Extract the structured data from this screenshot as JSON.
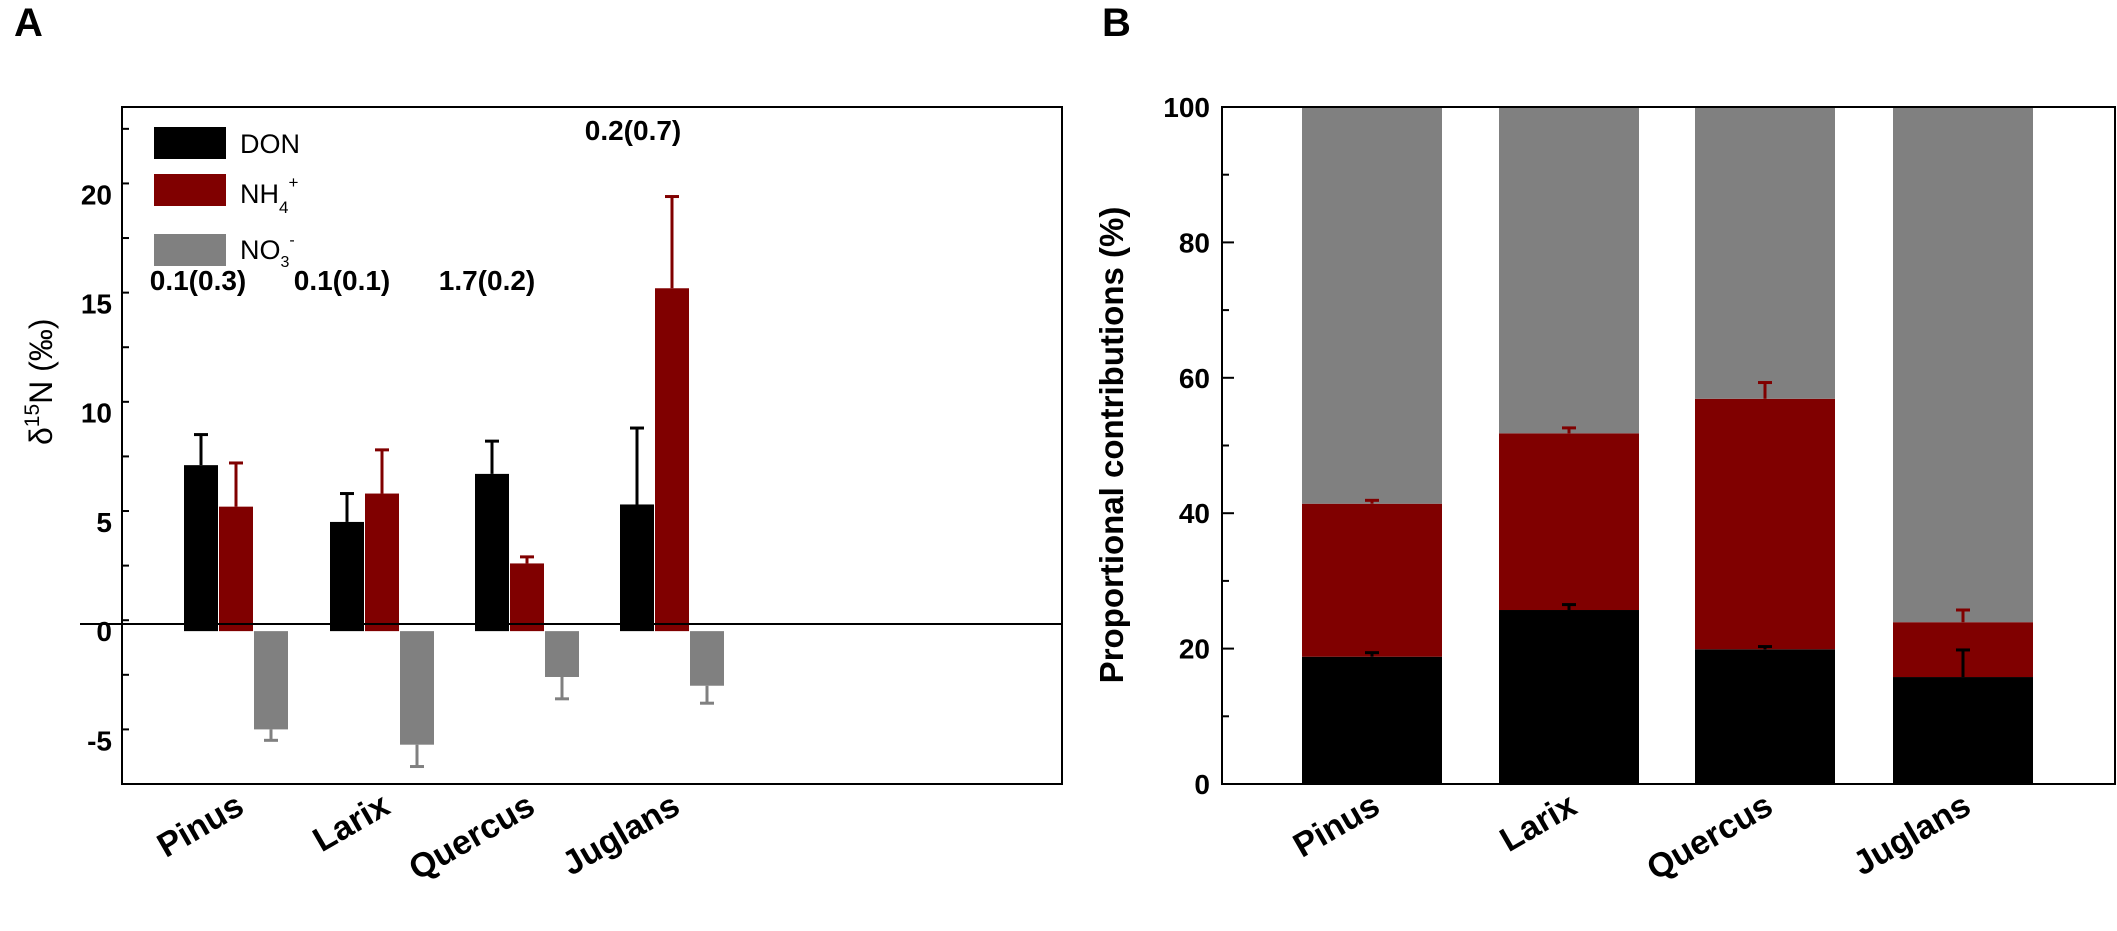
{
  "chart_data": [
    {
      "panel_label": "A",
      "type": "bar",
      "categories": [
        "Pinus",
        "Larix",
        "Quercus",
        "Juglans"
      ],
      "series": [
        {
          "name": "DON",
          "color": "#000000",
          "errcolor": "#000000",
          "values": [
            7.6,
            5.0,
            7.2,
            5.8
          ],
          "errors": [
            1.4,
            1.3,
            1.5,
            3.5
          ]
        },
        {
          "name": "NH4+",
          "color": "#800000",
          "errcolor": "#800000",
          "values": [
            5.7,
            6.3,
            3.1,
            15.7
          ],
          "errors": [
            2.0,
            2.0,
            0.3,
            4.2
          ]
        },
        {
          "name": "NO3-",
          "color": "#808080",
          "errcolor": "#808080",
          "values": [
            -4.5,
            -5.2,
            -2.1,
            -2.5
          ],
          "errors": [
            0.5,
            1.0,
            1.0,
            0.8
          ]
        }
      ],
      "legend_labels": {
        "don": "DON",
        "nh4_base": "NH",
        "nh4_sub": "4",
        "nh4_sup": "+",
        "no3_base": "NO",
        "no3_sub": "3",
        "no3_sup": "-"
      },
      "annotations": [
        "0.1(0.3)",
        "0.1(0.1)",
        "1.7(0.2)",
        "0.2(0.7)"
      ],
      "ylabel": {
        "delta": "δ",
        "sup": "15",
        "rest": "N (",
        "unit": "‰",
        "close": ")"
      },
      "ylim": [
        -7,
        24
      ],
      "yticks": [
        -5,
        0,
        5,
        10,
        15,
        20
      ],
      "ytick_labels": [
        "-5",
        "0",
        "5",
        "10",
        "15",
        "20"
      ],
      "legend_position": "top-left"
    },
    {
      "panel_label": "B",
      "type": "bar",
      "stacked": true,
      "categories": [
        "Pinus",
        "Larix",
        "Quercus",
        "Juglans"
      ],
      "series": [
        {
          "name": "DON",
          "color": "#000000",
          "errcolor": "#000000",
          "values": [
            18.8,
            25.7,
            19.9,
            15.8
          ],
          "errors": [
            0.6,
            0.8,
            0.4,
            4.0
          ]
        },
        {
          "name": "NH4+",
          "color": "#800000",
          "errcolor": "#800000",
          "values": [
            22.6,
            26.1,
            37.0,
            8.1
          ],
          "errors": [
            0.5,
            0.8,
            2.4,
            1.8
          ]
        },
        {
          "name": "NO3-",
          "color": "#808080",
          "errcolor": null,
          "values": [
            58.6,
            48.2,
            43.1,
            76.1
          ],
          "errors": [
            0,
            0,
            0,
            0
          ]
        }
      ],
      "ylabel": "Proportional contributions (%)",
      "ylim": [
        0,
        100
      ],
      "yticks": [
        0,
        20,
        40,
        60,
        80,
        100
      ],
      "ytick_labels": [
        "0",
        "20",
        "40",
        "60",
        "80",
        "100"
      ]
    }
  ]
}
